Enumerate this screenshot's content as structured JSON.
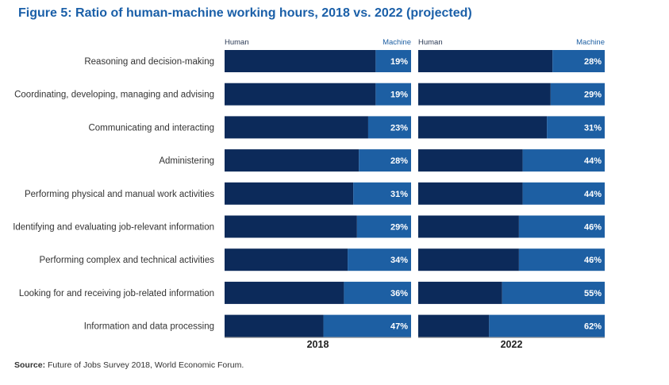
{
  "title": "Figure 5: Ratio of human-machine working hours, 2018 vs. 2022 (projected)",
  "source": {
    "label": "Source:",
    "text": "Future of Jobs Survey 2018, World Economic Forum."
  },
  "colors": {
    "human": "#0c2a5a",
    "machine": "#1d5fa3",
    "label_text": "#333333",
    "header_text": "#2b3a55"
  },
  "chart_data": {
    "type": "bar",
    "orientation": "horizontal",
    "stacked": true,
    "normalized": true,
    "categories": [
      "Reasoning and decision-making",
      "Coordinating, developing, managing and advising",
      "Communicating and interacting",
      "Administering",
      "Performing physical and manual work activities",
      "Identifying and evaluating job-relevant information",
      "Performing complex and technical activities",
      "Looking for and receiving job-related information",
      "Information and data processing"
    ],
    "panels": [
      {
        "name": "2018",
        "header_left": "Human",
        "header_right": "Machine",
        "series": [
          {
            "name": "Human",
            "values": [
              81,
              81,
              77,
              72,
              69,
              71,
              66,
              64,
              53
            ]
          },
          {
            "name": "Machine",
            "values": [
              19,
              19,
              23,
              28,
              31,
              29,
              34,
              36,
              47
            ]
          }
        ],
        "labels": [
          "19%",
          "19%",
          "23%",
          "28%",
          "31%",
          "29%",
          "34%",
          "36%",
          "47%"
        ]
      },
      {
        "name": "2022",
        "header_left": "Human",
        "header_right": "Machine",
        "series": [
          {
            "name": "Human",
            "values": [
              72,
              71,
              69,
              56,
              56,
              54,
              54,
              45,
              38
            ]
          },
          {
            "name": "Machine",
            "values": [
              28,
              29,
              31,
              44,
              44,
              46,
              46,
              55,
              62
            ]
          }
        ],
        "labels": [
          "28%",
          "29%",
          "31%",
          "44%",
          "44%",
          "46%",
          "46%",
          "55%",
          "62%"
        ]
      }
    ],
    "xlim": [
      0,
      100
    ]
  }
}
